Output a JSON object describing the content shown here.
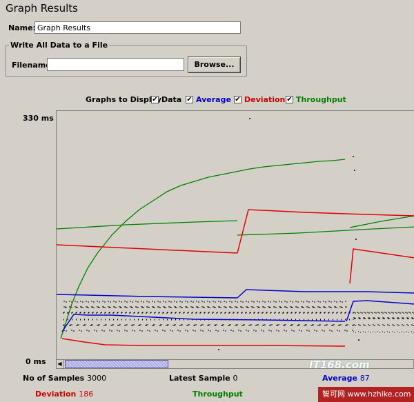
{
  "panel": {
    "title": "Graph Results"
  },
  "name_field": {
    "label": "Name:",
    "value": "Graph Results"
  },
  "file_group": {
    "legend": "Write All Data to a File",
    "filename_label": "Filename",
    "filename_value": "",
    "browse_label": "Browse..."
  },
  "graphs_to_display": {
    "label": "Graphs to Display",
    "options": [
      {
        "label": "Data",
        "checked": true,
        "color": "#000000"
      },
      {
        "label": "Average",
        "checked": true,
        "color": "#0000cc"
      },
      {
        "label": "Deviation",
        "checked": true,
        "color": "#cc0000"
      },
      {
        "label": "Throughput",
        "checked": true,
        "color": "#008000"
      }
    ]
  },
  "axis": {
    "max_label": "330  ms",
    "min_label": "0  ms"
  },
  "stats": {
    "samples_label": "No of Samples",
    "samples_value": "3000",
    "latest_label": "Latest Sample",
    "latest_value": "0",
    "average_label": "Average",
    "average_value": "87",
    "deviation_label": "Deviation",
    "deviation_value": "186",
    "throughput_label": "Throughput"
  },
  "colors": {
    "data": "#000000",
    "average": "#0000cc",
    "deviation": "#e00000",
    "throughput": "#008000"
  },
  "watermark": {
    "text": "智可网 www.hzhike.com",
    "logo": "IT168.com"
  }
}
